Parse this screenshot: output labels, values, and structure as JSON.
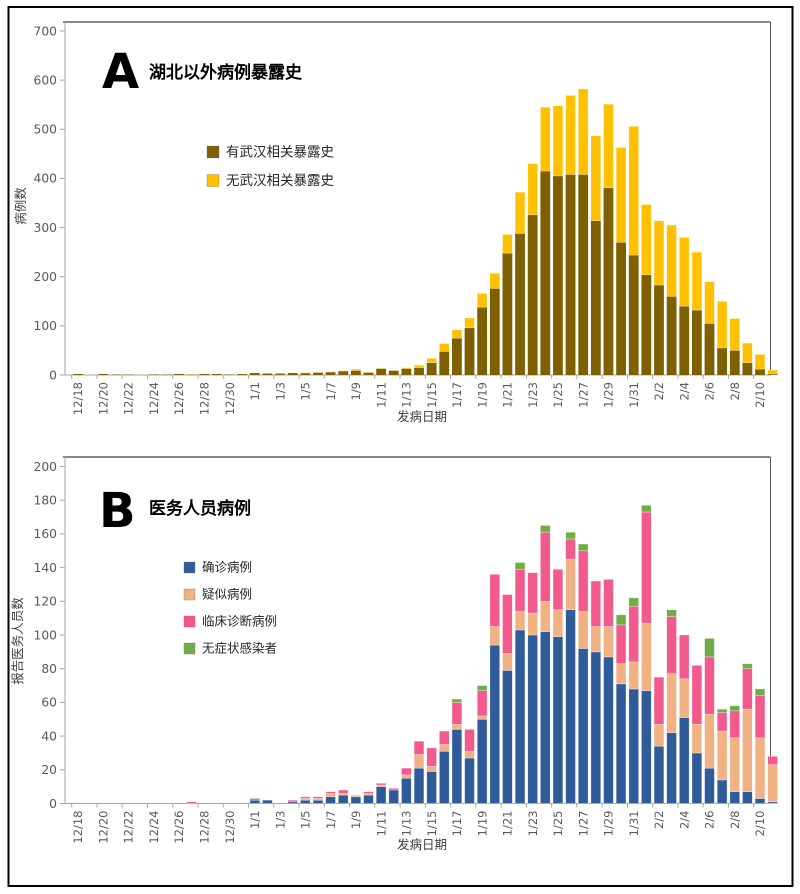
{
  "page": {
    "background_color": "#ffffff",
    "frame_color": "#000000"
  },
  "colors": {
    "axis_line": "#a6a6a6",
    "plot_border": "#595959",
    "tick_text": "#595959",
    "wuhan_exposure": "#7f6000",
    "no_wuhan_exposure": "#ffc000",
    "confirmed": "#2f5b99",
    "suspected": "#f0b183",
    "clinical": "#f2598c",
    "asymptomatic": "#70ad47"
  },
  "panels": [
    {
      "id": "a",
      "panel_letter": "A",
      "title": "湖北以外病例暴露史",
      "y_axis_label": "病例数",
      "x_axis_label": "发病日期",
      "legend": [
        {
          "label": "有武汉相关暴露史",
          "color": "#7f6000"
        },
        {
          "label": "无武汉相关暴露史",
          "color": "#ffc000"
        }
      ]
    },
    {
      "id": "b",
      "panel_letter": "B",
      "title": "医务人员病例",
      "y_axis_label": "报告医务人员数",
      "x_axis_label": "发病日期",
      "legend": [
        {
          "label": "确诊病例",
          "color": "#2f5b99"
        },
        {
          "label": "疑似病例",
          "color": "#f0b183"
        },
        {
          "label": "临床诊断病例",
          "color": "#f2598c"
        },
        {
          "label": "无症状感染者",
          "color": "#70ad47"
        }
      ]
    }
  ],
  "chart_data": [
    {
      "type": "bar",
      "stacked": true,
      "title": "湖北以外病例暴露史",
      "xlabel": "发病日期",
      "ylabel": "病例数",
      "ylim": [
        0,
        700
      ],
      "y_tick_interval": 100,
      "y_ticks": [
        0,
        100,
        200,
        300,
        400,
        500,
        600,
        700
      ],
      "x_tick_labels": [
        "12/18",
        "12/20",
        "12/22",
        "12/24",
        "12/26",
        "12/28",
        "12/30",
        "1/1",
        "1/3",
        "1/5",
        "1/7",
        "1/9",
        "1/11",
        "1/13",
        "1/15",
        "1/17",
        "1/19",
        "1/21",
        "1/23",
        "1/25",
        "1/27",
        "1/29",
        "1/31",
        "2/2",
        "2/4",
        "2/6",
        "2/8",
        "2/10"
      ],
      "grid": false,
      "legend_position": "upper-left-inside",
      "categories": [
        "12/18",
        "12/19",
        "12/20",
        "12/21",
        "12/22",
        "12/23",
        "12/24",
        "12/25",
        "12/26",
        "12/27",
        "12/28",
        "12/29",
        "12/30",
        "12/31",
        "1/1",
        "1/2",
        "1/3",
        "1/4",
        "1/5",
        "1/6",
        "1/7",
        "1/8",
        "1/9",
        "1/10",
        "1/11",
        "1/12",
        "1/13",
        "1/14",
        "1/15",
        "1/16",
        "1/17",
        "1/18",
        "1/19",
        "1/20",
        "1/21",
        "1/22",
        "1/23",
        "1/24",
        "1/25",
        "1/26",
        "1/27",
        "1/28",
        "1/29",
        "1/30",
        "1/31",
        "2/1",
        "2/2",
        "2/3",
        "2/4",
        "2/5",
        "2/6",
        "2/7",
        "2/8",
        "2/9",
        "2/10",
        "2/11"
      ],
      "series": [
        {
          "name": "有武汉相关暴露史",
          "color": "#7f6000",
          "values": [
            2,
            0,
            2,
            1,
            1,
            0,
            1,
            1,
            2,
            1,
            2,
            2,
            1,
            2,
            4,
            3,
            3,
            4,
            4,
            5,
            6,
            8,
            9,
            5,
            13,
            9,
            13,
            15,
            25,
            48,
            75,
            96,
            138,
            176,
            248,
            288,
            326,
            415,
            405,
            408,
            408,
            314,
            381,
            270,
            244,
            204,
            183,
            160,
            140,
            132,
            105,
            55,
            50,
            25,
            12,
            2
          ]
        },
        {
          "name": "无武汉相关暴露史",
          "color": "#ffc000",
          "values": [
            0,
            0,
            0,
            0,
            0,
            0,
            0,
            0,
            0,
            0,
            0,
            0,
            0,
            0,
            0,
            0,
            1,
            0,
            1,
            1,
            1,
            1,
            3,
            1,
            1,
            1,
            2,
            5,
            9,
            16,
            17,
            20,
            28,
            31,
            38,
            84,
            104,
            130,
            143,
            161,
            174,
            173,
            170,
            193,
            262,
            143,
            131,
            145,
            140,
            118,
            85,
            95,
            65,
            40,
            30,
            8
          ]
        }
      ]
    },
    {
      "type": "bar",
      "stacked": true,
      "title": "医务人员病例",
      "xlabel": "发病日期",
      "ylabel": "报告医务人员数",
      "ylim": [
        0,
        200
      ],
      "y_tick_interval": 20,
      "y_ticks": [
        0,
        20,
        40,
        60,
        80,
        100,
        120,
        140,
        160,
        180,
        200
      ],
      "x_tick_labels": [
        "12/18",
        "12/20",
        "12/22",
        "12/24",
        "12/26",
        "12/28",
        "12/30",
        "1/1",
        "1/3",
        "1/5",
        "1/7",
        "1/9",
        "1/11",
        "1/13",
        "1/15",
        "1/17",
        "1/19",
        "1/21",
        "1/23",
        "1/25",
        "1/27",
        "1/29",
        "1/31",
        "2/2",
        "2/4",
        "2/6",
        "2/8",
        "2/10"
      ],
      "grid": false,
      "legend_position": "upper-left-inside",
      "categories": [
        "12/18",
        "12/19",
        "12/20",
        "12/21",
        "12/22",
        "12/23",
        "12/24",
        "12/25",
        "12/26",
        "12/27",
        "12/28",
        "12/29",
        "12/30",
        "12/31",
        "1/1",
        "1/2",
        "1/3",
        "1/4",
        "1/5",
        "1/6",
        "1/7",
        "1/8",
        "1/9",
        "1/10",
        "1/11",
        "1/12",
        "1/13",
        "1/14",
        "1/15",
        "1/16",
        "1/17",
        "1/18",
        "1/19",
        "1/20",
        "1/21",
        "1/22",
        "1/23",
        "1/24",
        "1/25",
        "1/26",
        "1/27",
        "1/28",
        "1/29",
        "1/30",
        "1/31",
        "2/1",
        "2/2",
        "2/3",
        "2/4",
        "2/5",
        "2/6",
        "2/7",
        "2/8",
        "2/9",
        "2/10",
        "2/11"
      ],
      "series": [
        {
          "name": "确诊病例",
          "color": "#2f5b99",
          "values": [
            0,
            0,
            0,
            0,
            0,
            0,
            0,
            0,
            0,
            0,
            0,
            0,
            0,
            0,
            2,
            2,
            0,
            1,
            2,
            2,
            4,
            5,
            4,
            5,
            10,
            8,
            15,
            21,
            19,
            31,
            44,
            27,
            50,
            94,
            79,
            103,
            100,
            102,
            99,
            115,
            92,
            90,
            87,
            71,
            68,
            67,
            34,
            42,
            51,
            30,
            21,
            14,
            7,
            7,
            3,
            1
          ]
        },
        {
          "name": "疑似病例",
          "color": "#f0b183",
          "values": [
            0,
            0,
            0,
            0,
            0,
            0,
            0,
            0,
            0,
            0,
            0,
            0,
            0,
            0,
            0,
            0,
            0,
            0,
            1,
            1,
            2,
            1,
            1,
            1,
            1,
            0,
            2,
            8,
            3,
            4,
            3,
            4,
            2,
            11,
            10,
            11,
            13,
            18,
            16,
            30,
            22,
            15,
            18,
            12,
            16,
            40,
            13,
            35,
            23,
            17,
            32,
            29,
            32,
            49,
            36,
            22
          ]
        },
        {
          "name": "临床诊断病例",
          "color": "#f2598c",
          "values": [
            0,
            0,
            0,
            0,
            0,
            0,
            0,
            0,
            0,
            1,
            0,
            0,
            0,
            0,
            1,
            0,
            0,
            1,
            1,
            1,
            1,
            2,
            0,
            1,
            1,
            1,
            4,
            8,
            11,
            8,
            13,
            13,
            15,
            31,
            35,
            25,
            24,
            41,
            24,
            12,
            36,
            27,
            28,
            23,
            33,
            66,
            28,
            34,
            26,
            35,
            34,
            11,
            16,
            24,
            25,
            5
          ]
        },
        {
          "name": "无症状感染者",
          "color": "#70ad47",
          "values": [
            0,
            0,
            0,
            0,
            0,
            0,
            0,
            0,
            0,
            0,
            0,
            0,
            0,
            0,
            0,
            0,
            0,
            0,
            0,
            0,
            0,
            0,
            0,
            0,
            0,
            0,
            0,
            0,
            0,
            0,
            2,
            0,
            3,
            0,
            0,
            4,
            0,
            4,
            0,
            4,
            4,
            0,
            0,
            6,
            5,
            4,
            0,
            4,
            0,
            0,
            11,
            2,
            3,
            3,
            4,
            0
          ]
        }
      ]
    }
  ]
}
